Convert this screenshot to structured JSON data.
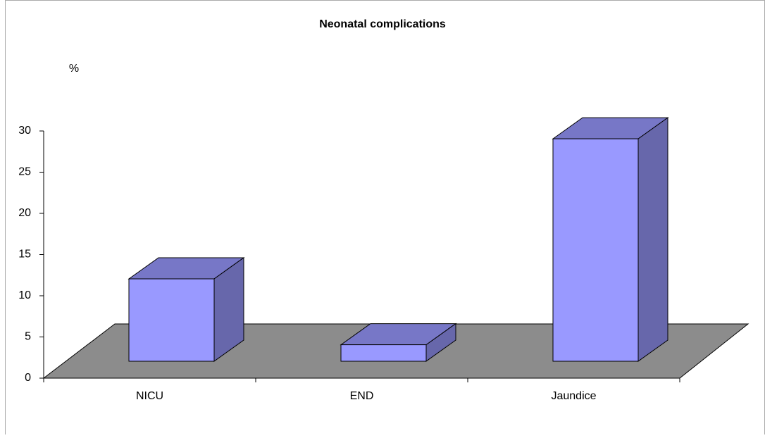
{
  "chart_data": {
    "type": "bar",
    "title": "Neonatal complications",
    "y_label": "%",
    "categories": [
      "NICU",
      "END",
      "Jaundice"
    ],
    "values": [
      10,
      2,
      27
    ],
    "color": "#9999ff",
    "floor_color": "#8c8c8c",
    "ylim": [
      0,
      30
    ],
    "yticks": [
      0,
      5,
      10,
      15,
      20,
      25,
      30
    ]
  }
}
